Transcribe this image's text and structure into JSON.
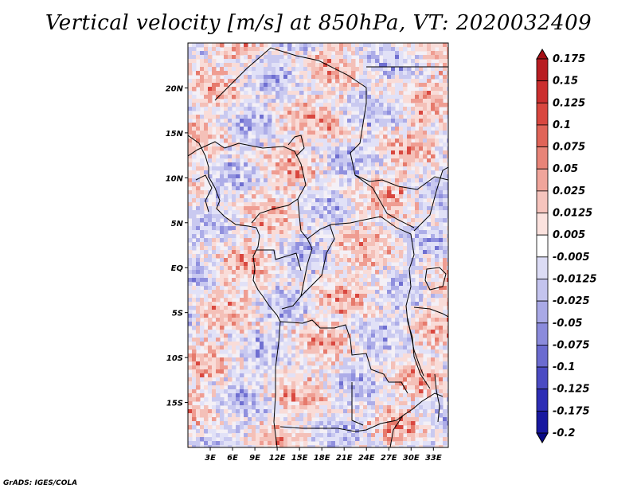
{
  "title": "Vertical velocity [m/s] at 850hPa, VT: 2020032409",
  "credit": "GrADS: IGES/COLA",
  "map": {
    "lon_range": [
      0,
      35
    ],
    "lat_range": [
      -20,
      25
    ],
    "lat_ticks": [
      {
        "lat": 20,
        "label": "20N"
      },
      {
        "lat": 15,
        "label": "15N"
      },
      {
        "lat": 10,
        "label": "10N"
      },
      {
        "lat": 5,
        "label": "5N"
      },
      {
        "lat": 0,
        "label": "EQ"
      },
      {
        "lat": -5,
        "label": "5S"
      },
      {
        "lat": -10,
        "label": "10S"
      },
      {
        "lat": -15,
        "label": "15S"
      }
    ],
    "lon_ticks": [
      {
        "lon": 3,
        "label": "3E"
      },
      {
        "lon": 6,
        "label": "6E"
      },
      {
        "lon": 9,
        "label": "9E"
      },
      {
        "lon": 12,
        "label": "12E"
      },
      {
        "lon": 15,
        "label": "15E"
      },
      {
        "lon": 18,
        "label": "18E"
      },
      {
        "lon": 21,
        "label": "21E"
      },
      {
        "lon": 24,
        "label": "24E"
      },
      {
        "lon": 27,
        "label": "27E"
      },
      {
        "lon": 30,
        "label": "30E"
      },
      {
        "lon": 33,
        "label": "33E"
      }
    ]
  },
  "colorbar": {
    "levels": [
      "0.175",
      "0.15",
      "0.125",
      "0.1",
      "0.075",
      "0.05",
      "0.025",
      "0.0125",
      "0.005",
      "-0.005",
      "-0.0125",
      "-0.025",
      "-0.05",
      "-0.075",
      "-0.1",
      "-0.125",
      "-0.175",
      "-0.2"
    ],
    "colors": [
      "#a50f15",
      "#b81d22",
      "#cb2f2f",
      "#d9473f",
      "#e06458",
      "#e88478",
      "#f0a59b",
      "#f6c4bd",
      "#fbe2de",
      "#ffffff",
      "#dcdcf5",
      "#c4c4ee",
      "#a9a9e6",
      "#8b8bdc",
      "#6b6bd0",
      "#4b4bc3",
      "#2d2db5",
      "#1818a0",
      "#0a0a85"
    ]
  }
}
